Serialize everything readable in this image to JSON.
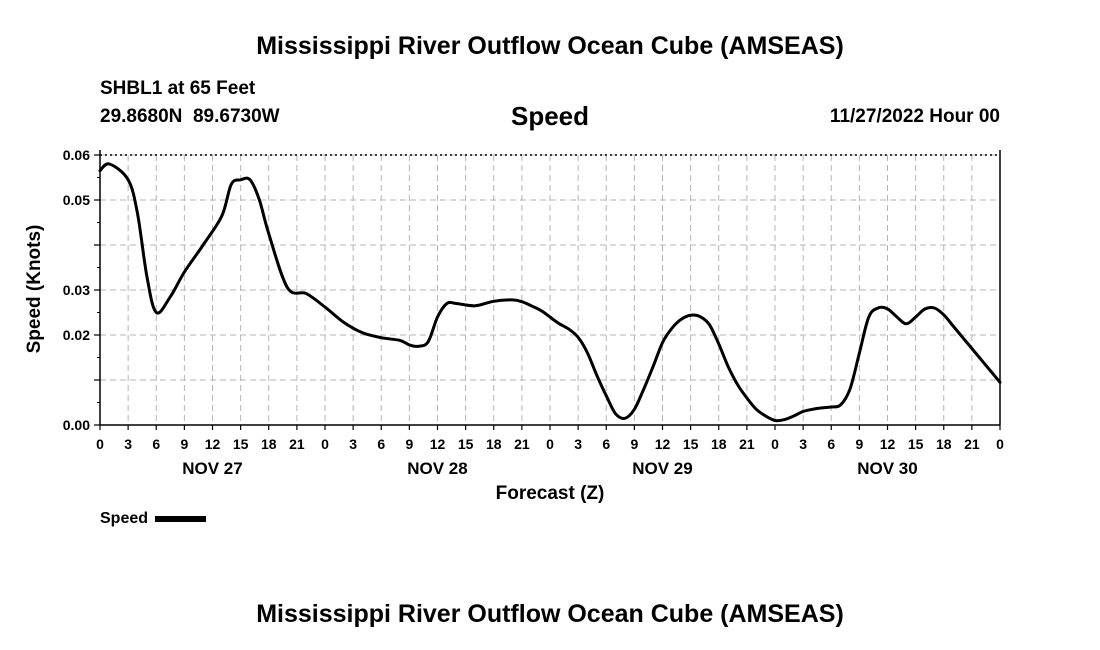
{
  "page": {
    "title_top": "Mississippi River Outflow Ocean Cube (AMSEAS)",
    "title_bottom": "Mississippi River Outflow Ocean Cube (AMSEAS)",
    "station": "SHBL1 at 65 Feet",
    "coords": "29.8680N  89.6730W",
    "datetime": "11/27/2022 Hour 00"
  },
  "chart_data": {
    "type": "line",
    "title": "Speed",
    "xlabel": "Forecast (Z)",
    "ylabel": "Speed (Knots)",
    "xlim": [
      0,
      96
    ],
    "ylim": [
      0,
      0.06
    ],
    "yticks": [
      0,
      0.01,
      0.02,
      0.03,
      0.04,
      0.05,
      0.06
    ],
    "ytick_labels": [
      "0.00",
      "",
      "0.02",
      "0.03",
      "",
      "0.05",
      "0.06"
    ],
    "xtick_labels": [
      "0",
      "3",
      "6",
      "9",
      "12",
      "15",
      "18",
      "21",
      "0",
      "3",
      "6",
      "9",
      "12",
      "15",
      "18",
      "21",
      "0",
      "3",
      "6",
      "9",
      "12",
      "15",
      "18",
      "21",
      "0",
      "3",
      "6",
      "9",
      "12",
      "15",
      "18",
      "21",
      "0"
    ],
    "day_labels": [
      {
        "label": "NOV 27",
        "hour": 12
      },
      {
        "label": "NOV 28",
        "hour": 36
      },
      {
        "label": "NOV 29",
        "hour": 60
      },
      {
        "label": "NOV 30",
        "hour": 84
      }
    ],
    "grid": true,
    "legend": {
      "label": "Speed",
      "position": "bottom-left"
    },
    "series": [
      {
        "name": "Speed",
        "x": [
          0,
          1,
          3,
          4,
          5,
          6,
          7.5,
          9,
          11,
          13,
          14,
          15,
          16,
          17,
          18,
          20,
          22,
          24,
          26,
          28,
          30,
          32,
          33,
          34,
          35,
          36,
          37,
          38,
          40,
          42,
          44,
          45,
          46,
          47,
          48,
          48.5,
          49,
          50,
          51,
          52,
          53,
          54,
          55,
          56,
          57,
          58,
          59,
          60,
          61,
          62,
          63,
          64,
          65,
          66,
          67,
          68,
          69,
          70,
          71,
          72,
          73,
          74,
          75,
          76,
          77,
          78,
          79,
          80,
          81,
          82,
          83,
          84,
          85,
          86,
          87,
          88,
          89,
          90,
          91,
          92,
          93,
          94,
          95,
          96
        ],
        "values": [
          0.0565,
          0.058,
          0.0545,
          0.047,
          0.033,
          0.025,
          0.0285,
          0.034,
          0.04,
          0.0465,
          0.0535,
          0.0545,
          0.0545,
          0.05,
          0.0425,
          0.0305,
          0.0292,
          0.0262,
          0.0228,
          0.0205,
          0.0194,
          0.0188,
          0.0178,
          0.0175,
          0.0185,
          0.024,
          0.027,
          0.027,
          0.0265,
          0.0275,
          0.0278,
          0.0274,
          0.0265,
          0.0255,
          0.024,
          0.0232,
          0.0225,
          0.0213,
          0.0195,
          0.016,
          0.011,
          0.0065,
          0.0025,
          0.0015,
          0.0035,
          0.008,
          0.013,
          0.0183,
          0.0215,
          0.0235,
          0.0244,
          0.0241,
          0.0223,
          0.018,
          0.013,
          0.009,
          0.006,
          0.0035,
          0.002,
          0.001,
          0.0012,
          0.002,
          0.003,
          0.0035,
          0.0038,
          0.004,
          0.0045,
          0.008,
          0.016,
          0.024,
          0.026,
          0.0258,
          0.024,
          0.0225,
          0.024,
          0.0258,
          0.026,
          0.0245,
          0.022,
          0.0195,
          0.017,
          0.0145,
          0.012,
          0.0095
        ]
      }
    ]
  }
}
